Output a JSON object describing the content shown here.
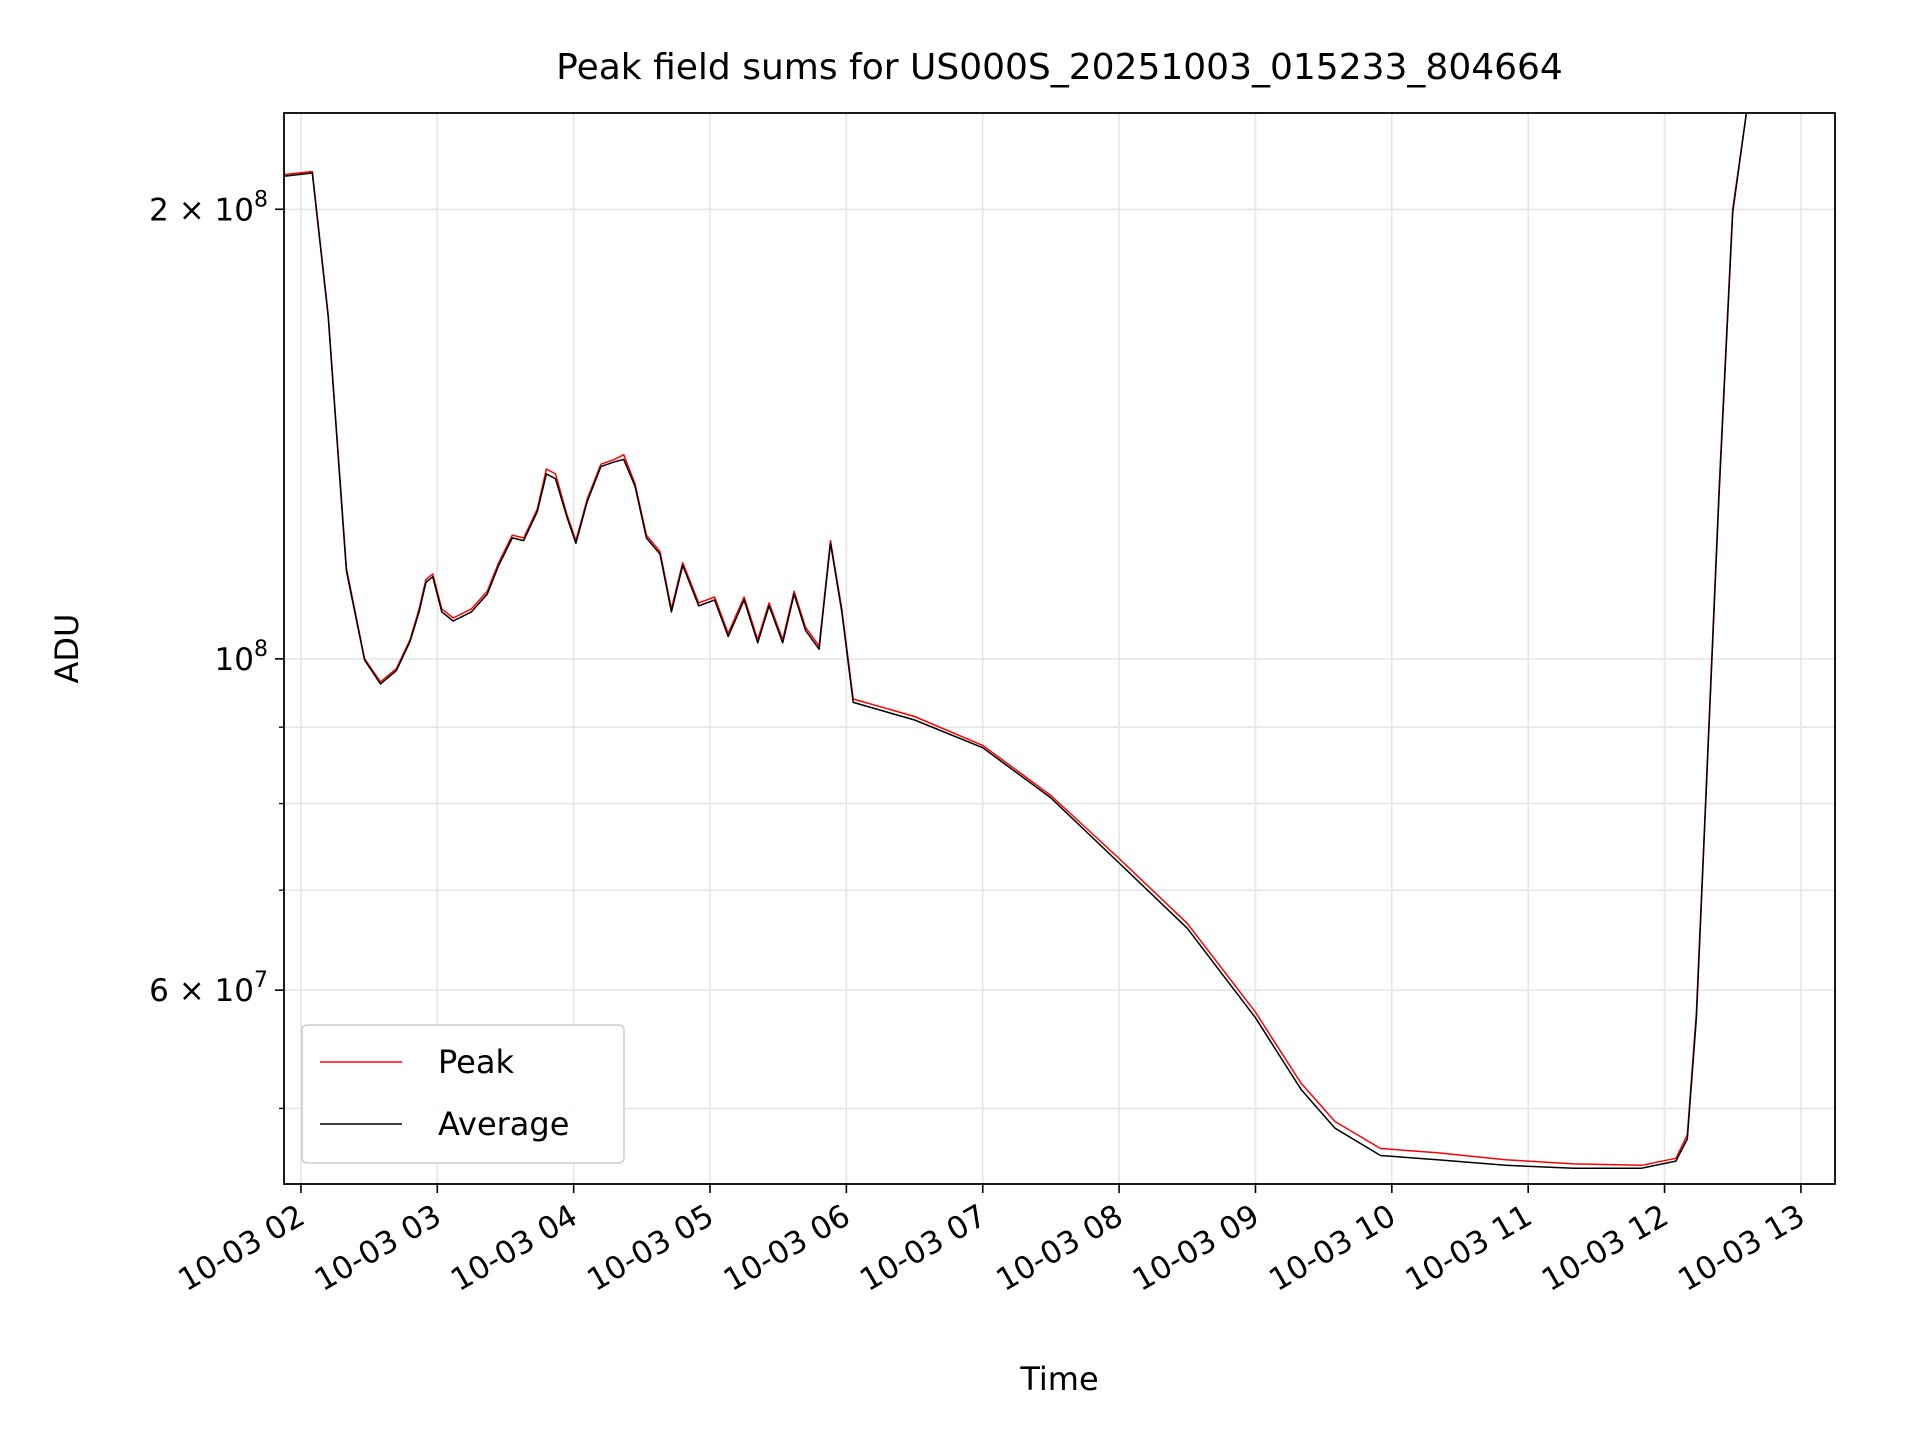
{
  "chart_data": {
    "type": "line",
    "title": "Peak field sums for US000S_20251003_015233_804664",
    "xlabel": "Time",
    "ylabel": "ADU",
    "y_scale": "log",
    "ylim": [
      44500000,
      232000000
    ],
    "xlim": [
      "2025-10-03 01:52:33",
      "2025-10-03 13:15:00"
    ],
    "grid": true,
    "legend_position": "lower left",
    "x_ticks": [
      {
        "t": "2025-10-03 02:00",
        "label": "10-03 02"
      },
      {
        "t": "2025-10-03 03:00",
        "label": "10-03 03"
      },
      {
        "t": "2025-10-03 04:00",
        "label": "10-03 04"
      },
      {
        "t": "2025-10-03 05:00",
        "label": "10-03 05"
      },
      {
        "t": "2025-10-03 06:00",
        "label": "10-03 06"
      },
      {
        "t": "2025-10-03 07:00",
        "label": "10-03 07"
      },
      {
        "t": "2025-10-03 08:00",
        "label": "10-03 08"
      },
      {
        "t": "2025-10-03 09:00",
        "label": "10-03 09"
      },
      {
        "t": "2025-10-03 10:00",
        "label": "10-03 10"
      },
      {
        "t": "2025-10-03 11:00",
        "label": "10-03 11"
      },
      {
        "t": "2025-10-03 12:00",
        "label": "10-03 12"
      },
      {
        "t": "2025-10-03 13:00",
        "label": "10-03 13"
      }
    ],
    "y_ticks_major": [
      {
        "value": 60000000,
        "base": "6 × 10",
        "exp": "7"
      },
      {
        "value": 100000000,
        "base": "10",
        "exp": "8"
      },
      {
        "value": 200000000,
        "base": "2 × 10",
        "exp": "8"
      }
    ],
    "y_ticks_minor": [
      50000000,
      70000000,
      80000000,
      90000000
    ],
    "series": [
      {
        "name": "Peak",
        "color": "#ff0000",
        "points": [
          [
            "2025-10-03 01:53",
            211000000
          ],
          [
            "2025-10-03 02:05",
            212000000
          ],
          [
            "2025-10-03 02:12",
            170000000
          ],
          [
            "2025-10-03 02:20",
            115000000
          ],
          [
            "2025-10-03 02:28",
            100000000
          ],
          [
            "2025-10-03 02:35",
            96500000
          ],
          [
            "2025-10-03 02:42",
            98500000
          ],
          [
            "2025-10-03 02:48",
            103000000
          ],
          [
            "2025-10-03 02:52",
            108000000
          ],
          [
            "2025-10-03 02:55",
            113000000
          ],
          [
            "2025-10-03 02:58",
            114000000
          ],
          [
            "2025-10-03 03:02",
            108000000
          ],
          [
            "2025-10-03 03:07",
            106500000
          ],
          [
            "2025-10-03 03:15",
            108000000
          ],
          [
            "2025-10-03 03:22",
            111000000
          ],
          [
            "2025-10-03 03:27",
            116000000
          ],
          [
            "2025-10-03 03:33",
            121000000
          ],
          [
            "2025-10-03 03:38",
            120500000
          ],
          [
            "2025-10-03 03:44",
            126000000
          ],
          [
            "2025-10-03 03:48",
            134000000
          ],
          [
            "2025-10-03 03:52",
            133000000
          ],
          [
            "2025-10-03 03:57",
            125000000
          ],
          [
            "2025-10-03 04:01",
            120000000
          ],
          [
            "2025-10-03 04:06",
            128000000
          ],
          [
            "2025-10-03 04:12",
            135000000
          ],
          [
            "2025-10-03 04:18",
            136000000
          ],
          [
            "2025-10-03 04:22",
            137000000
          ],
          [
            "2025-10-03 04:27",
            131000000
          ],
          [
            "2025-10-03 04:32",
            121000000
          ],
          [
            "2025-10-03 04:38",
            118000000
          ],
          [
            "2025-10-03 04:43",
            108000000
          ],
          [
            "2025-10-03 04:48",
            116000000
          ],
          [
            "2025-10-03 04:55",
            109000000
          ],
          [
            "2025-10-03 05:02",
            110000000
          ],
          [
            "2025-10-03 05:08",
            104000000
          ],
          [
            "2025-10-03 05:15",
            110000000
          ],
          [
            "2025-10-03 05:21",
            103000000
          ],
          [
            "2025-10-03 05:26",
            109000000
          ],
          [
            "2025-10-03 05:32",
            103000000
          ],
          [
            "2025-10-03 05:37",
            111000000
          ],
          [
            "2025-10-03 05:42",
            105000000
          ],
          [
            "2025-10-03 05:48",
            102000000
          ],
          [
            "2025-10-03 05:53",
            120000000
          ],
          [
            "2025-10-03 05:58",
            108000000
          ],
          [
            "2025-10-03 06:03",
            94000000
          ],
          [
            "2025-10-03 06:30",
            91500000
          ],
          [
            "2025-10-03 07:00",
            87500000
          ],
          [
            "2025-10-03 07:30",
            81000000
          ],
          [
            "2025-10-03 08:00",
            73500000
          ],
          [
            "2025-10-03 08:30",
            66500000
          ],
          [
            "2025-10-03 09:00",
            58000000
          ],
          [
            "2025-10-03 09:20",
            52000000
          ],
          [
            "2025-10-03 09:35",
            49000000
          ],
          [
            "2025-10-03 09:55",
            47000000
          ],
          [
            "2025-10-03 10:20",
            46700000
          ],
          [
            "2025-10-03 10:50",
            46200000
          ],
          [
            "2025-10-03 11:20",
            45900000
          ],
          [
            "2025-10-03 11:50",
            45800000
          ],
          [
            "2025-10-03 12:05",
            46300000
          ],
          [
            "2025-10-03 12:10",
            48000000
          ],
          [
            "2025-10-03 12:14",
            58000000
          ],
          [
            "2025-10-03 12:18",
            80000000
          ],
          [
            "2025-10-03 12:24",
            130000000
          ],
          [
            "2025-10-03 12:30",
            200000000
          ],
          [
            "2025-10-03 12:36",
            232000000
          ]
        ]
      },
      {
        "name": "Average",
        "color": "#000000",
        "points": [
          [
            "2025-10-03 01:53",
            210500000
          ],
          [
            "2025-10-03 02:05",
            211500000
          ],
          [
            "2025-10-03 02:12",
            169500000
          ],
          [
            "2025-10-03 02:20",
            114500000
          ],
          [
            "2025-10-03 02:28",
            99800000
          ],
          [
            "2025-10-03 02:35",
            96200000
          ],
          [
            "2025-10-03 02:42",
            98200000
          ],
          [
            "2025-10-03 02:48",
            102700000
          ],
          [
            "2025-10-03 02:52",
            107500000
          ],
          [
            "2025-10-03 02:55",
            112500000
          ],
          [
            "2025-10-03 02:58",
            113500000
          ],
          [
            "2025-10-03 03:02",
            107500000
          ],
          [
            "2025-10-03 03:07",
            106000000
          ],
          [
            "2025-10-03 03:15",
            107500000
          ],
          [
            "2025-10-03 03:22",
            110500000
          ],
          [
            "2025-10-03 03:27",
            115500000
          ],
          [
            "2025-10-03 03:33",
            120500000
          ],
          [
            "2025-10-03 03:38",
            120000000
          ],
          [
            "2025-10-03 03:44",
            125500000
          ],
          [
            "2025-10-03 03:48",
            133000000
          ],
          [
            "2025-10-03 03:52",
            132000000
          ],
          [
            "2025-10-03 03:57",
            124500000
          ],
          [
            "2025-10-03 04:01",
            119500000
          ],
          [
            "2025-10-03 04:06",
            127500000
          ],
          [
            "2025-10-03 04:12",
            134500000
          ],
          [
            "2025-10-03 04:18",
            135500000
          ],
          [
            "2025-10-03 04:22",
            136000000
          ],
          [
            "2025-10-03 04:27",
            130500000
          ],
          [
            "2025-10-03 04:32",
            120500000
          ],
          [
            "2025-10-03 04:38",
            117500000
          ],
          [
            "2025-10-03 04:43",
            107500000
          ],
          [
            "2025-10-03 04:48",
            115500000
          ],
          [
            "2025-10-03 04:55",
            108500000
          ],
          [
            "2025-10-03 05:02",
            109500000
          ],
          [
            "2025-10-03 05:08",
            103500000
          ],
          [
            "2025-10-03 05:15",
            109500000
          ],
          [
            "2025-10-03 05:21",
            102500000
          ],
          [
            "2025-10-03 05:26",
            108500000
          ],
          [
            "2025-10-03 05:32",
            102500000
          ],
          [
            "2025-10-03 05:37",
            110500000
          ],
          [
            "2025-10-03 05:42",
            104500000
          ],
          [
            "2025-10-03 05:48",
            101500000
          ],
          [
            "2025-10-03 05:53",
            119500000
          ],
          [
            "2025-10-03 05:58",
            107500000
          ],
          [
            "2025-10-03 06:03",
            93500000
          ],
          [
            "2025-10-03 06:30",
            91000000
          ],
          [
            "2025-10-03 07:00",
            87200000
          ],
          [
            "2025-10-03 07:30",
            80700000
          ],
          [
            "2025-10-03 08:00",
            73000000
          ],
          [
            "2025-10-03 08:30",
            66000000
          ],
          [
            "2025-10-03 09:00",
            57500000
          ],
          [
            "2025-10-03 09:20",
            51500000
          ],
          [
            "2025-10-03 09:35",
            48500000
          ],
          [
            "2025-10-03 09:55",
            46500000
          ],
          [
            "2025-10-03 10:20",
            46200000
          ],
          [
            "2025-10-03 10:50",
            45800000
          ],
          [
            "2025-10-03 11:20",
            45600000
          ],
          [
            "2025-10-03 11:50",
            45600000
          ],
          [
            "2025-10-03 12:05",
            46100000
          ],
          [
            "2025-10-03 12:10",
            47700000
          ],
          [
            "2025-10-03 12:14",
            57500000
          ],
          [
            "2025-10-03 12:18",
            79500000
          ],
          [
            "2025-10-03 12:24",
            129000000
          ],
          [
            "2025-10-03 12:30",
            199000000
          ],
          [
            "2025-10-03 12:36",
            232000000
          ]
        ]
      }
    ]
  }
}
